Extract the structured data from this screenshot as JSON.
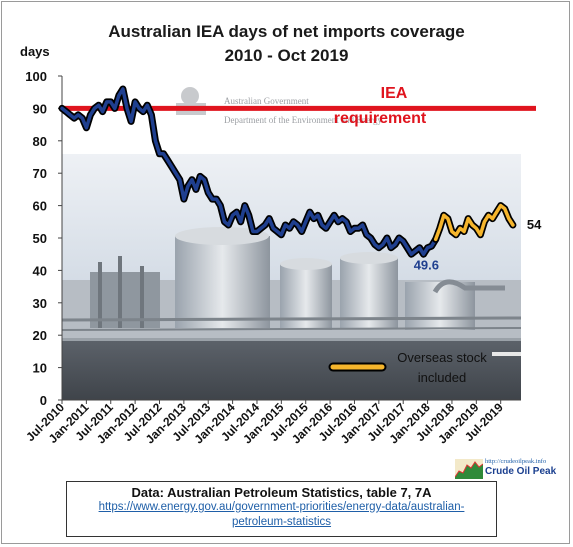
{
  "chart_data": {
    "type": "line",
    "title": "Australian  IEA days of net imports coverage",
    "subtitle": "2010 - Oct 2019",
    "ylabel": "days",
    "ylim": [
      0,
      100
    ],
    "yticks": [
      0,
      10,
      20,
      30,
      40,
      50,
      60,
      70,
      80,
      90,
      100
    ],
    "xlim": [
      "2010-07",
      "2019-12"
    ],
    "xticks": [
      "Jul-2010",
      "Jan-2011",
      "Jul-2011",
      "Jan-2012",
      "Jul-2012",
      "Jan-2013",
      "Jul-2013",
      "Jan-2014",
      "Jul-2014",
      "Jan-2015",
      "Jul-2015",
      "Jan-2016",
      "Jul-2016",
      "Jan-2017",
      "Jul-2017",
      "Jan-2018",
      "Jul-2018",
      "Jan-2019",
      "Jul-2019"
    ],
    "reference_line": {
      "label": "IEA requirement",
      "value": 90,
      "color": "#e0141e"
    },
    "series": [
      {
        "color": "#1f3f8f",
        "points": [
          [
            "2010-07",
            90
          ],
          [
            "2010-08",
            89
          ],
          [
            "2010-09",
            88
          ],
          [
            "2010-10",
            87
          ],
          [
            "2010-11",
            88
          ],
          [
            "2010-12",
            87
          ],
          [
            "2011-01",
            84
          ],
          [
            "2011-02",
            88
          ],
          [
            "2011-03",
            90
          ],
          [
            "2011-04",
            91
          ],
          [
            "2011-05",
            89
          ],
          [
            "2011-06",
            92
          ],
          [
            "2011-07",
            92
          ],
          [
            "2011-08",
            90
          ],
          [
            "2011-09",
            94
          ],
          [
            "2011-10",
            96
          ],
          [
            "2011-11",
            90
          ],
          [
            "2011-12",
            86
          ],
          [
            "2012-01",
            92
          ],
          [
            "2012-02",
            90
          ],
          [
            "2012-03",
            89
          ],
          [
            "2012-04",
            91
          ],
          [
            "2012-05",
            88
          ],
          [
            "2012-06",
            80
          ],
          [
            "2012-07",
            76
          ],
          [
            "2012-08",
            76
          ],
          [
            "2012-09",
            74
          ],
          [
            "2012-10",
            72
          ],
          [
            "2012-11",
            70
          ],
          [
            "2012-12",
            68
          ],
          [
            "2013-01",
            62
          ],
          [
            "2013-02",
            66
          ],
          [
            "2013-03",
            68
          ],
          [
            "2013-04",
            65
          ],
          [
            "2013-05",
            69
          ],
          [
            "2013-06",
            68
          ],
          [
            "2013-07",
            64
          ],
          [
            "2013-08",
            62
          ],
          [
            "2013-09",
            62
          ],
          [
            "2013-10",
            60
          ],
          [
            "2013-11",
            55
          ],
          [
            "2013-12",
            54
          ],
          [
            "2014-01",
            57
          ],
          [
            "2014-02",
            58
          ],
          [
            "2014-03",
            55
          ],
          [
            "2014-04",
            60
          ],
          [
            "2014-05",
            57
          ],
          [
            "2014-06",
            52
          ],
          [
            "2014-07",
            52
          ],
          [
            "2014-08",
            53
          ],
          [
            "2014-09",
            54
          ],
          [
            "2014-10",
            56
          ],
          [
            "2014-11",
            53
          ],
          [
            "2014-12",
            52
          ],
          [
            "2015-01",
            51
          ],
          [
            "2015-02",
            54
          ],
          [
            "2015-03",
            53
          ],
          [
            "2015-04",
            55
          ],
          [
            "2015-05",
            54
          ],
          [
            "2015-06",
            52
          ],
          [
            "2015-07",
            55
          ],
          [
            "2015-08",
            58
          ],
          [
            "2015-09",
            56
          ],
          [
            "2015-10",
            57
          ],
          [
            "2015-11",
            54
          ],
          [
            "2015-12",
            53
          ],
          [
            "2016-01",
            55
          ],
          [
            "2016-02",
            57
          ],
          [
            "2016-03",
            55
          ],
          [
            "2016-04",
            56
          ],
          [
            "2016-05",
            55
          ],
          [
            "2016-06",
            52
          ],
          [
            "2016-07",
            53
          ],
          [
            "2016-08",
            53
          ],
          [
            "2016-09",
            54
          ],
          [
            "2016-10",
            51
          ],
          [
            "2016-11",
            50
          ],
          [
            "2016-12",
            48
          ],
          [
            "2017-01",
            47
          ],
          [
            "2017-02",
            48
          ],
          [
            "2017-03",
            50
          ],
          [
            "2017-04",
            47
          ],
          [
            "2017-05",
            48
          ],
          [
            "2017-06",
            50
          ],
          [
            "2017-07",
            49
          ],
          [
            "2017-08",
            47
          ],
          [
            "2017-09",
            45
          ],
          [
            "2017-10",
            46
          ],
          [
            "2017-11",
            47
          ],
          [
            "2017-12",
            45
          ],
          [
            "2018-01",
            47
          ],
          [
            "2018-02",
            47.5
          ],
          [
            "2018-03",
            49.6
          ]
        ],
        "end_label": "49.6"
      },
      {
        "name": "Overseas stock included",
        "color": "#f5b52c",
        "points": [
          [
            "2018-03",
            49.6
          ],
          [
            "2018-04",
            53
          ],
          [
            "2018-05",
            57
          ],
          [
            "2018-06",
            56
          ],
          [
            "2018-07",
            52
          ],
          [
            "2018-08",
            51
          ],
          [
            "2018-09",
            53
          ],
          [
            "2018-10",
            52
          ],
          [
            "2018-11",
            56
          ],
          [
            "2018-12",
            54
          ],
          [
            "2019-01",
            53
          ],
          [
            "2019-02",
            51
          ],
          [
            "2019-03",
            55
          ],
          [
            "2019-04",
            57
          ],
          [
            "2019-05",
            56
          ],
          [
            "2019-06",
            58
          ],
          [
            "2019-07",
            60
          ],
          [
            "2019-08",
            59
          ],
          [
            "2019-09",
            56
          ],
          [
            "2019-10",
            54
          ]
        ],
        "end_label": "54"
      }
    ],
    "legend": {
      "position": "bottom-right",
      "label": "Overseas stock included"
    },
    "grid": false
  },
  "background_image_text": {
    "line1": "Australian Government",
    "line2": "Department of the Environment and Energy"
  },
  "source": {
    "title": "Data: Australian Petroleum Statistics, table 7, 7A",
    "link": "https://www.energy.gov.au/government-priorities/energy-data/australian-petroleum-statistics"
  },
  "logo": {
    "url": "http://crudeoilpeak.info",
    "name": "Crude Oil Peak"
  },
  "colors": {
    "primary_line": "#1f3f8f",
    "overseas_line": "#f5b52c",
    "iea_line": "#e0141e",
    "line_outline": "#000000"
  }
}
